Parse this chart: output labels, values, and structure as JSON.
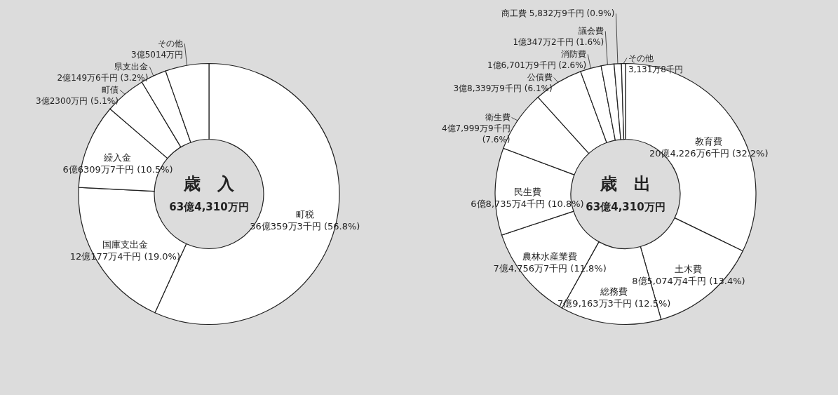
{
  "chart_data": [
    {
      "type": "donut",
      "title": "歳　入",
      "subtitle": "63億4,310万円",
      "categories": [
        "町税",
        "国庫支出金",
        "繰入金",
        "町債",
        "県支出金",
        "その他"
      ],
      "values": [
        56.8,
        19.0,
        10.5,
        5.1,
        3.2,
        5.4
      ],
      "colors": [
        "#ffffff",
        "#ffffff",
        "#ffffff",
        "#ffffff",
        "#ffffff",
        "#ffffff"
      ],
      "value_labels": [
        "36億359万3千円 (56.8%)",
        "12億177万4千円 (19.0%)",
        "6億6309万7千円 (10.5%)",
        "3億2300万円 (5.1%)",
        "2億149万6千円 (3.2%)",
        null
      ],
      "annotations": [
        {
          "text": "3億5014万円",
          "x": "その他"
        }
      ]
    },
    {
      "type": "donut",
      "title": "歳　出",
      "subtitle": "63億4,310万円",
      "categories": [
        "教育費",
        "土木費",
        "総務費",
        "農林水産業費",
        "民生費",
        "衛生費",
        "公債費",
        "消防費",
        "議会費",
        "商工費",
        "その他"
      ],
      "values": [
        32.2,
        13.4,
        12.5,
        11.8,
        10.8,
        7.6,
        6.1,
        2.6,
        1.6,
        0.9,
        0.5
      ],
      "colors": [
        "#ffffff",
        "#ffffff",
        "#ffffff",
        "#ffffff",
        "#ffffff",
        "#ffffff",
        "#ffffff",
        "#ffffff",
        "#ffffff",
        "#ffffff",
        "#ffffff"
      ],
      "value_labels": [
        "20億4,226万6千円 (32.2%)",
        "8億5,074万4千円 (13.4%)",
        "7億9,163万3千円 (12.5%)",
        "7億4,756万7千円 (11.8%)",
        "6億8,735万4千円 (10.8%)",
        "4億7,999万9千円 (7.6%)",
        "3億8,339万9千円 (6.1%)",
        "1億6,701万9千円 (2.6%)",
        "1億347万2千円 (1.6%)",
        "5,832万9千円 (0.9%)",
        null
      ],
      "annotations": [
        {
          "text": "3,131万8千円",
          "x": "その他"
        }
      ]
    }
  ]
}
